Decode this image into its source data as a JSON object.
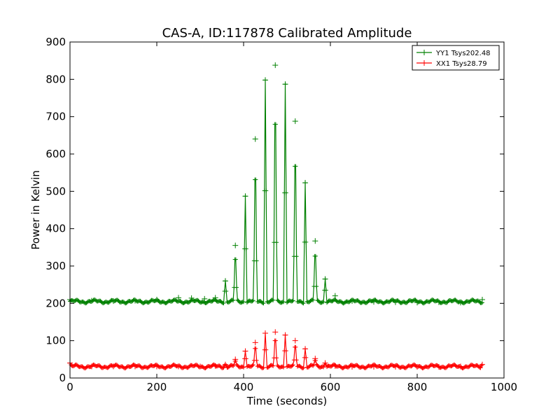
{
  "chart_data": {
    "type": "line",
    "title": "CAS-A, ID:117878 Calibrated Amplitude",
    "xlabel": "Time (seconds)",
    "ylabel": "Power in Kelvin",
    "xlim": [
      0,
      1000
    ],
    "ylim": [
      0,
      900
    ],
    "xticks": [
      0,
      200,
      400,
      600,
      800,
      1000
    ],
    "yticks": [
      0,
      100,
      200,
      300,
      400,
      500,
      600,
      700,
      800,
      900
    ],
    "xtick_labels": [
      "0",
      "200",
      "400",
      "600",
      "800",
      "1000"
    ],
    "ytick_labels": [
      "0",
      "100",
      "200",
      "300",
      "400",
      "500",
      "600",
      "700",
      "800",
      "900"
    ],
    "grid": false,
    "legend_position": "top-right",
    "marker": "+",
    "series": [
      {
        "name": "YY1 Tsys202.48",
        "color": "#008000",
        "baseline": 205,
        "x_range": [
          0,
          950
        ],
        "x": [
          0,
          50,
          100,
          150,
          200,
          250,
          280,
          310,
          335,
          358,
          381,
          404,
          427,
          450,
          473,
          496,
          519,
          542,
          565,
          588,
          611,
          650,
          700,
          750,
          800,
          850,
          900,
          950
        ],
        "y": [
          210,
          207,
          206,
          207,
          210,
          215,
          214,
          212,
          215,
          260,
          355,
          487,
          640,
          798,
          838,
          787,
          688,
          523,
          367,
          265,
          220,
          206,
          204,
          203,
          202,
          203,
          202,
          210
        ]
      },
      {
        "name": "XX1 Tsys28.79",
        "color": "#ff0000",
        "baseline": 31,
        "x_range": [
          0,
          950
        ],
        "x": [
          0,
          50,
          100,
          150,
          200,
          250,
          300,
          335,
          358,
          381,
          404,
          427,
          450,
          473,
          496,
          519,
          542,
          565,
          588,
          611,
          650,
          700,
          750,
          800,
          850,
          900,
          950
        ],
        "y": [
          40,
          31,
          31,
          31,
          31,
          31,
          31,
          32,
          36,
          50,
          72,
          95,
          120,
          123,
          115,
          100,
          78,
          52,
          40,
          32,
          30,
          30,
          30,
          30,
          30,
          31,
          36
        ]
      }
    ]
  }
}
